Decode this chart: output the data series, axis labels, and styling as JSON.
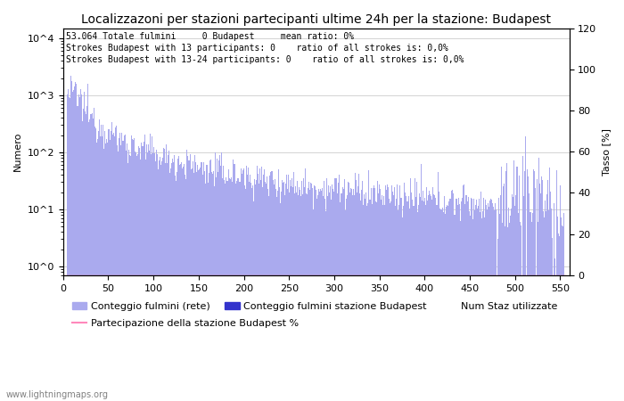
{
  "title": "Localizzazoni per stazioni partecipanti ultime 24h per la stazione: Budapest",
  "ylabel_left": "Numero",
  "ylabel_right": "Tasso [%]",
  "annotation_lines": [
    "53.064 Totale fulmini     0 Budapest     mean ratio: 0%",
    "Strokes Budapest with 13 participants: 0    ratio of all strokes is: 0,0%",
    "Strokes Budapest with 13-24 participants: 0    ratio of all strokes is: 0,0%"
  ],
  "xlim": [
    0,
    560
  ],
  "ylim_right": [
    0,
    120
  ],
  "yticks_right": [
    0,
    20,
    40,
    60,
    80,
    100,
    120
  ],
  "bar_color_network": "#AAAAEE",
  "bar_color_budapest": "#3333CC",
  "line_color": "#FF88BB",
  "background_color": "#FFFFFF",
  "grid_color": "#CCCCCC",
  "legend_labels": [
    "Conteggio fulmini (rete)",
    "Conteggio fulmini stazione Budapest",
    "Num Staz utilizzate",
    "Partecipazione della stazione Budapest %"
  ],
  "watermark": "www.lightningmaps.org",
  "title_fontsize": 10,
  "annotation_fontsize": 7,
  "axis_fontsize": 8,
  "legend_fontsize": 8
}
